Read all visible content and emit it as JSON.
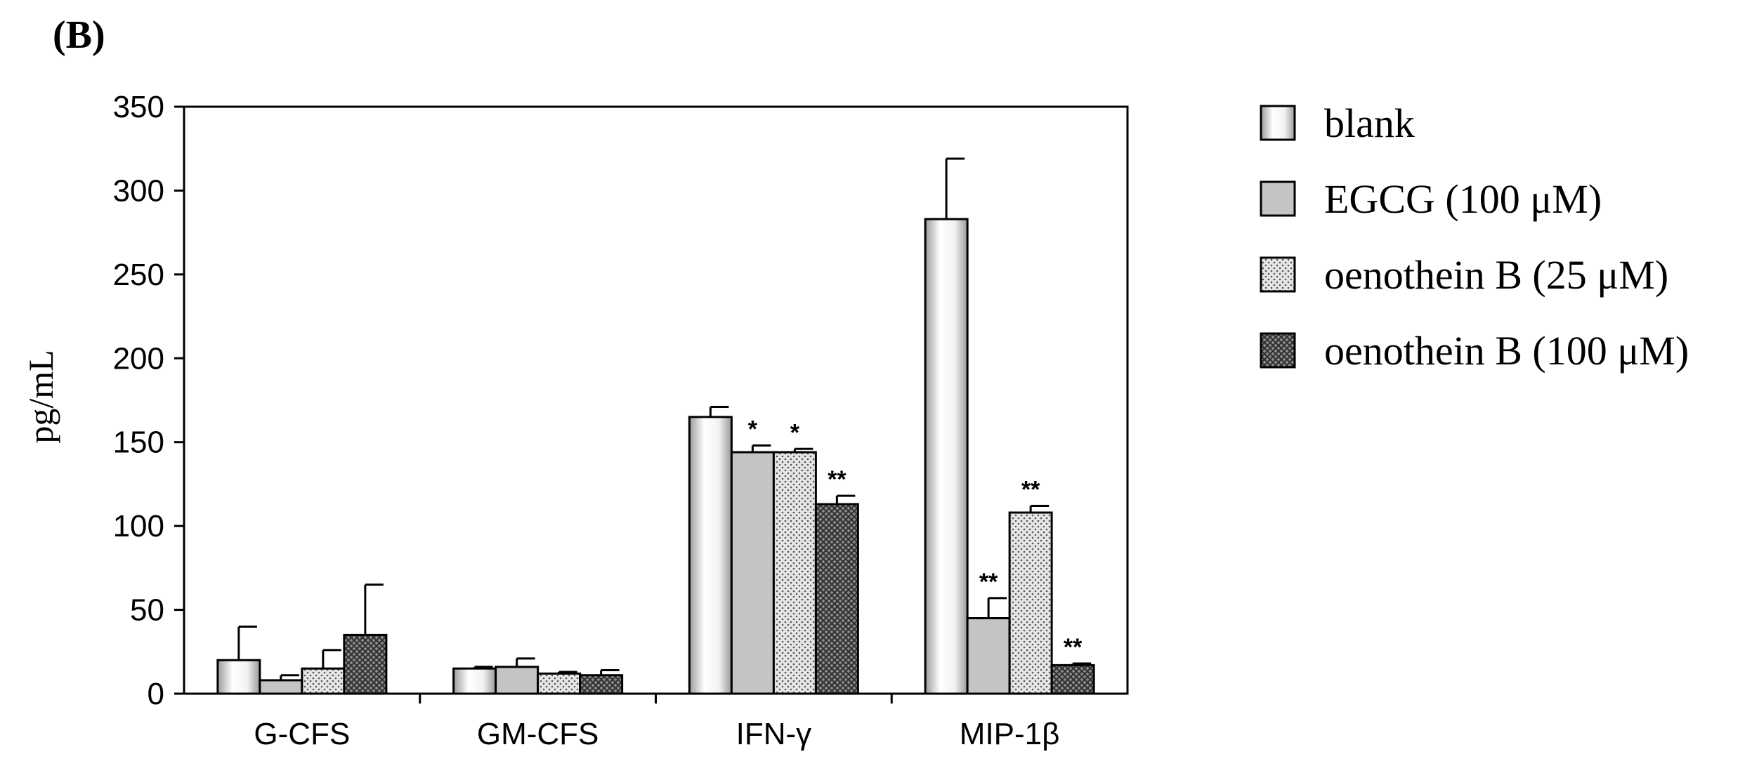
{
  "panel_label": "(B)",
  "chart_data": {
    "type": "bar",
    "title": "",
    "ylabel": "pg/mL",
    "xlabel": "",
    "ylim": [
      0,
      350
    ],
    "yticks": [
      0,
      50,
      100,
      150,
      200,
      250,
      300,
      350
    ],
    "categories": [
      "G-CFS",
      "GM-CFS",
      "IFN-γ",
      "MIP-1β"
    ],
    "legend_position": "right",
    "series": [
      {
        "name": "blank",
        "pattern": "blank",
        "values": [
          20,
          15,
          165,
          283
        ],
        "errors": [
          20,
          1,
          6,
          36
        ],
        "significance": [
          "",
          "",
          "",
          ""
        ]
      },
      {
        "name": "EGCG (100 μM)",
        "pattern": "gray",
        "values": [
          8,
          16,
          144,
          45
        ],
        "errors": [
          3,
          5,
          4,
          12
        ],
        "significance": [
          "",
          "",
          "*",
          "**"
        ]
      },
      {
        "name": "oenothein B (25 μM)",
        "pattern": "dotted",
        "values": [
          15,
          12,
          144,
          108
        ],
        "errors": [
          11,
          1,
          2,
          4
        ],
        "significance": [
          "",
          "",
          "*",
          "**"
        ]
      },
      {
        "name": "oenothein B (100 μM)",
        "pattern": "crosshatch",
        "values": [
          35,
          11,
          113,
          17
        ],
        "errors": [
          30,
          3,
          5,
          1
        ],
        "significance": [
          "",
          "",
          "**",
          "**"
        ]
      }
    ],
    "colors": {
      "blank_light": "#ffffff",
      "blank_dark": "#9a9a9a",
      "gray_fill": "#c4c4c4",
      "dotted_bg": "#e6e6e6",
      "dotted_dot": "#555555",
      "crosshatch_bg": "#8a8a8a",
      "crosshatch_line": "#2e2e2e",
      "axis": "#000000"
    }
  }
}
